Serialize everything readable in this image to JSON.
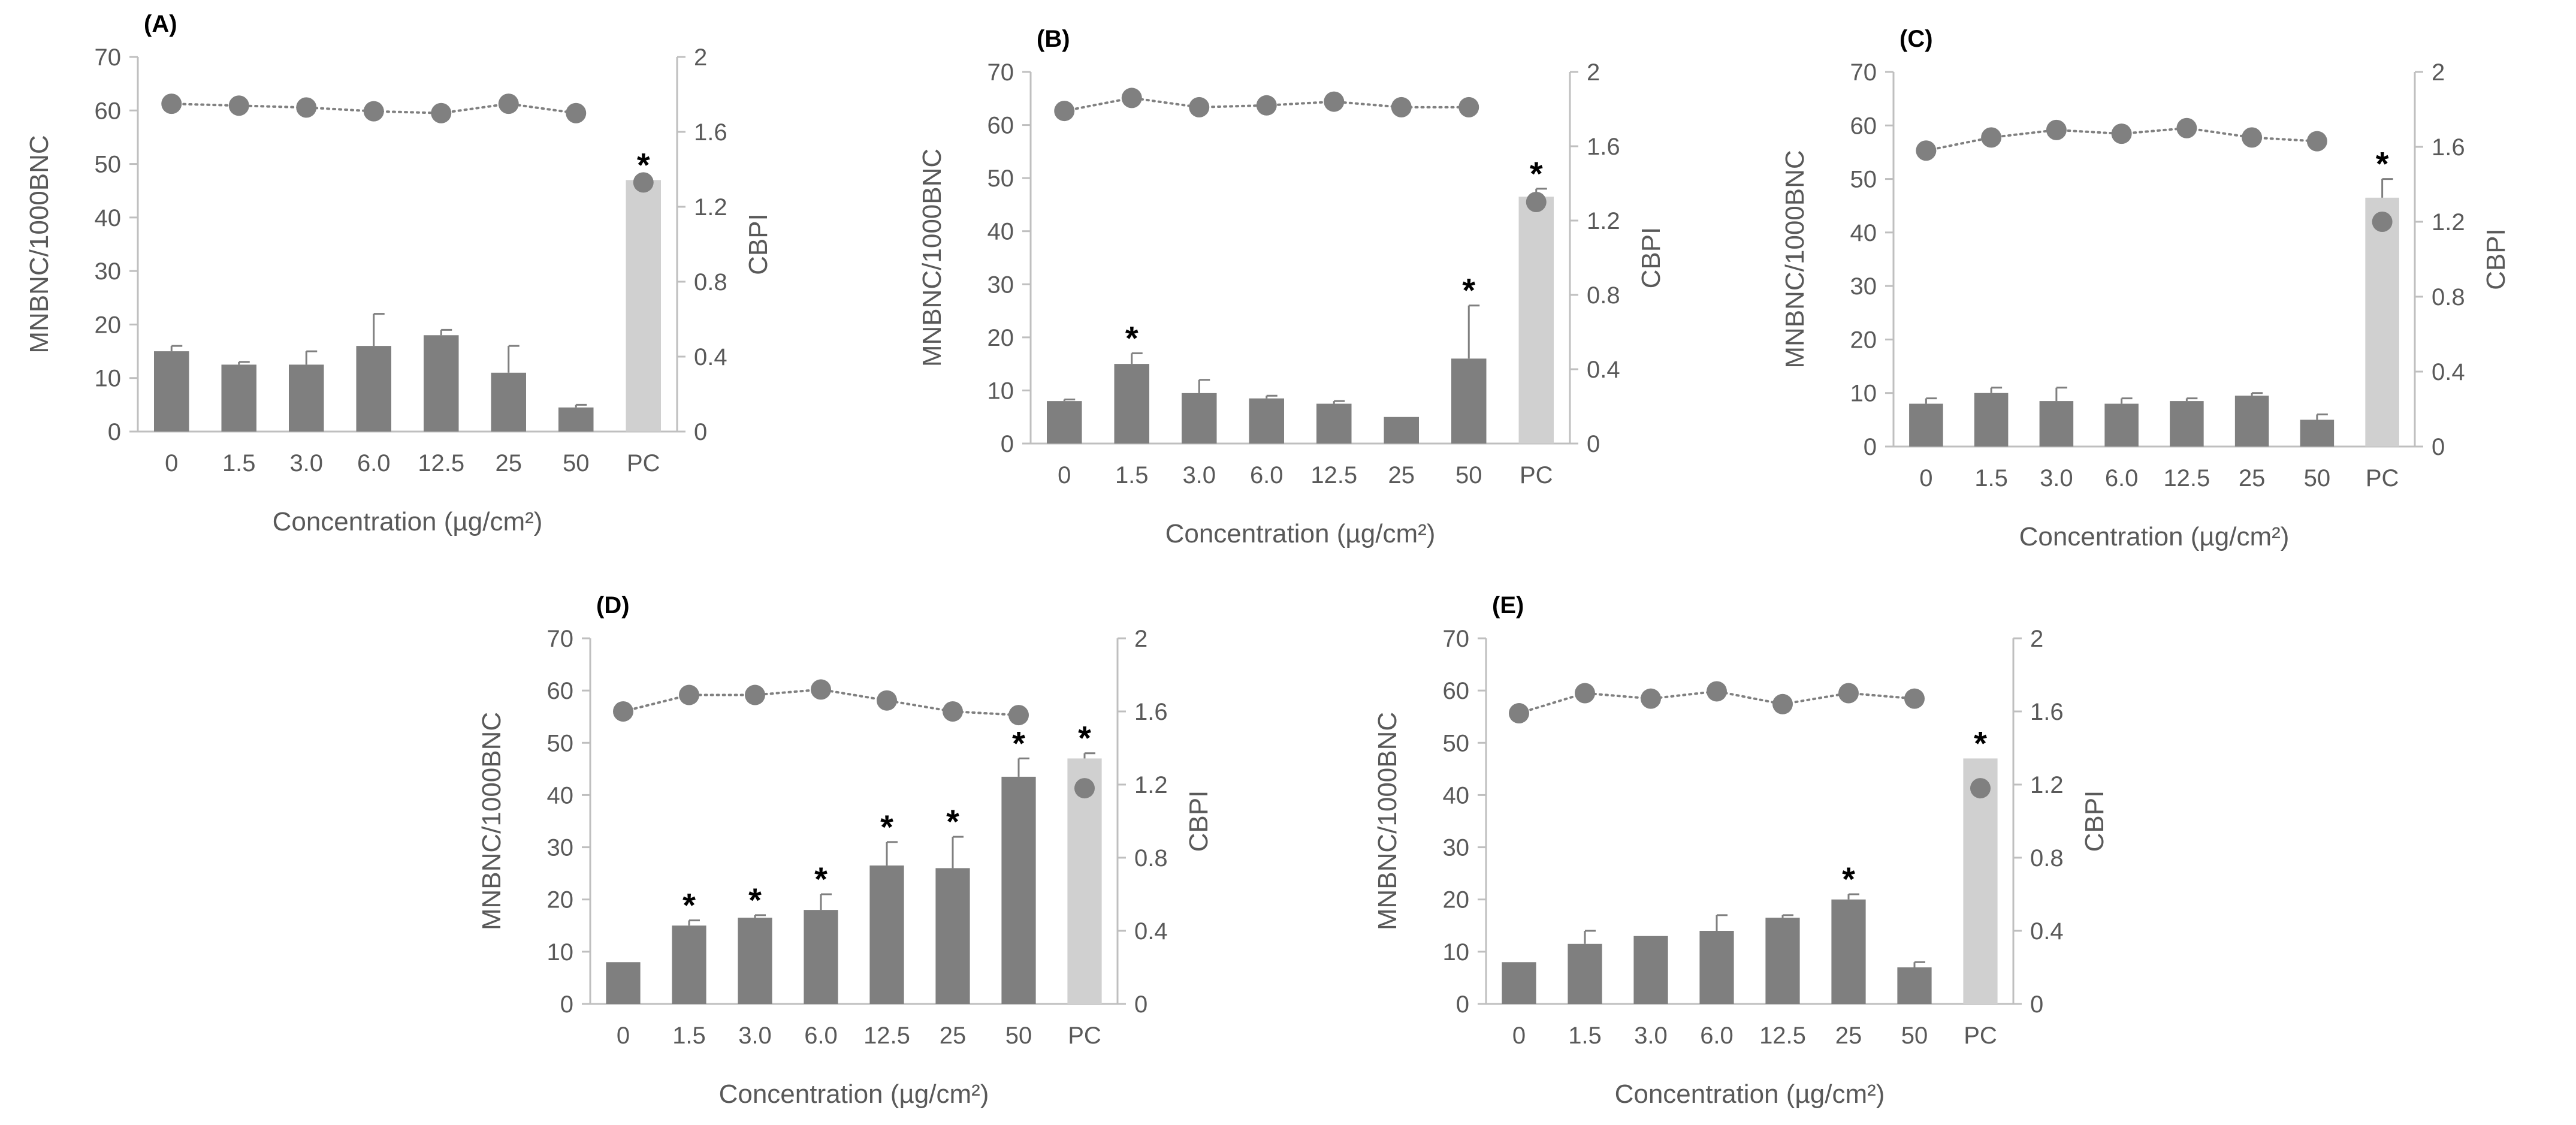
{
  "colors": {
    "bar": "#7f7f7f",
    "pc_bar": "#d0d0d0",
    "marker": "#808080",
    "axis": "#bfbfbf",
    "text": "#595959",
    "label": "#000000"
  },
  "chart_data": [
    {
      "type": "bar",
      "panel_label": "(A)",
      "categories": [
        "0",
        "1.5",
        "3.0",
        "6.0",
        "12.5",
        "25",
        "50",
        "PC"
      ],
      "xlabel": "Concentration (µg/cm²)",
      "ylabel": "MNBNC/1000BNC",
      "y2label": "CBPI",
      "ylim": [
        0,
        70
      ],
      "y2lim": [
        0,
        2
      ],
      "yticks": [
        "0",
        "10",
        "20",
        "30",
        "40",
        "50",
        "60",
        "70"
      ],
      "y2ticks": [
        "0",
        "0.4",
        "0.8",
        "1.2",
        "1.6",
        "2"
      ],
      "series": [
        {
          "name": "MNBNC/1000BNC",
          "type": "bar",
          "values": [
            15,
            12.5,
            12.5,
            16,
            18,
            11,
            4.5,
            47
          ],
          "errors": [
            1,
            0.5,
            2.5,
            6,
            1,
            5,
            0.5,
            0
          ]
        },
        {
          "name": "CBPI",
          "type": "line",
          "values": [
            1.75,
            1.74,
            1.73,
            1.71,
            1.7,
            1.75,
            1.7,
            1.33
          ]
        }
      ],
      "significant": [
        "PC"
      ],
      "significance_mark": "*"
    },
    {
      "type": "bar",
      "panel_label": "(B)",
      "categories": [
        "0",
        "1.5",
        "3.0",
        "6.0",
        "12.5",
        "25",
        "50",
        "PC"
      ],
      "xlabel": "Concentration (µg/cm²)",
      "ylabel": "MNBNC/1000BNC",
      "y2label": "CBPI",
      "ylim": [
        0,
        70
      ],
      "y2lim": [
        0,
        2
      ],
      "yticks": [
        "0",
        "10",
        "20",
        "30",
        "40",
        "50",
        "60",
        "70"
      ],
      "y2ticks": [
        "0",
        "0.4",
        "0.8",
        "1.2",
        "1.6",
        "2"
      ],
      "series": [
        {
          "name": "MNBNC/1000BNC",
          "type": "bar",
          "values": [
            8,
            15,
            9.5,
            8.5,
            7.5,
            5,
            16,
            46.5
          ],
          "errors": [
            0.3,
            2,
            2.5,
            0.5,
            0.5,
            0,
            10,
            1.5
          ]
        },
        {
          "name": "CBPI",
          "type": "line",
          "values": [
            1.79,
            1.86,
            1.81,
            1.82,
            1.84,
            1.81,
            1.81,
            1.3
          ]
        }
      ],
      "significant": [
        "1.5",
        "50",
        "PC"
      ],
      "significance_mark": "*"
    },
    {
      "type": "bar",
      "panel_label": "(C)",
      "categories": [
        "0",
        "1.5",
        "3.0",
        "6.0",
        "12.5",
        "25",
        "50",
        "PC"
      ],
      "xlabel": "Concentration (µg/cm²)",
      "ylabel": "MNBNC/1000BNC",
      "y2label": "CBPI",
      "ylim": [
        0,
        70
      ],
      "y2lim": [
        0,
        2
      ],
      "yticks": [
        "0",
        "10",
        "20",
        "30",
        "40",
        "50",
        "60",
        "70"
      ],
      "y2ticks": [
        "0",
        "0.4",
        "0.8",
        "1.2",
        "1.6",
        "2"
      ],
      "series": [
        {
          "name": "MNBNC/1000BNC",
          "type": "bar",
          "values": [
            8,
            10,
            8.5,
            8,
            8.5,
            9.5,
            5,
            46.5
          ],
          "errors": [
            1,
            1,
            2.5,
            1,
            0.5,
            0.5,
            1,
            3.5
          ]
        },
        {
          "name": "CBPI",
          "type": "line",
          "values": [
            1.58,
            1.65,
            1.69,
            1.67,
            1.7,
            1.65,
            1.63,
            1.2
          ]
        }
      ],
      "significant": [
        "PC"
      ],
      "significance_mark": "*"
    },
    {
      "type": "bar",
      "panel_label": "(D)",
      "categories": [
        "0",
        "1.5",
        "3.0",
        "6.0",
        "12.5",
        "25",
        "50",
        "PC"
      ],
      "xlabel": "Concentration (µg/cm²)",
      "ylabel": "MNBNC/1000BNC",
      "y2label": "CBPI",
      "ylim": [
        0,
        70
      ],
      "y2lim": [
        0,
        2
      ],
      "yticks": [
        "0",
        "10",
        "20",
        "30",
        "40",
        "50",
        "60",
        "70"
      ],
      "y2ticks": [
        "0",
        "0.4",
        "0.8",
        "1.2",
        "1.6",
        "2"
      ],
      "series": [
        {
          "name": "MNBNC/1000BNC",
          "type": "bar",
          "values": [
            8,
            15,
            16.5,
            18,
            26.5,
            26,
            43.5,
            47
          ],
          "errors": [
            0,
            1,
            0.5,
            3,
            4.5,
            6,
            3.5,
            1
          ]
        },
        {
          "name": "CBPI",
          "type": "line",
          "values": [
            1.6,
            1.69,
            1.69,
            1.72,
            1.66,
            1.6,
            1.58,
            1.18
          ]
        }
      ],
      "significant": [
        "1.5",
        "3.0",
        "6.0",
        "12.5",
        "25",
        "50",
        "PC"
      ],
      "significance_mark": "*"
    },
    {
      "type": "bar",
      "panel_label": "(E)",
      "categories": [
        "0",
        "1.5",
        "3.0",
        "6.0",
        "12.5",
        "25",
        "50",
        "PC"
      ],
      "xlabel": "Concentration (µg/cm²)",
      "ylabel": "MNBNC/1000BNC",
      "y2label": "CBPI",
      "ylim": [
        0,
        70
      ],
      "y2lim": [
        0,
        2
      ],
      "yticks": [
        "0",
        "10",
        "20",
        "30",
        "40",
        "50",
        "60",
        "70"
      ],
      "y2ticks": [
        "0",
        "0.4",
        "0.8",
        "1.2",
        "1.6",
        "2"
      ],
      "series": [
        {
          "name": "MNBNC/1000BNC",
          "type": "bar",
          "values": [
            8,
            11.5,
            13,
            14,
            16.5,
            20,
            7,
            47
          ],
          "errors": [
            0,
            2.5,
            0,
            3,
            0.5,
            1,
            1,
            0
          ]
        },
        {
          "name": "CBPI",
          "type": "line",
          "values": [
            1.59,
            1.7,
            1.67,
            1.71,
            1.64,
            1.7,
            1.67,
            1.18
          ]
        }
      ],
      "significant": [
        "25",
        "PC"
      ],
      "significance_mark": "*"
    }
  ]
}
